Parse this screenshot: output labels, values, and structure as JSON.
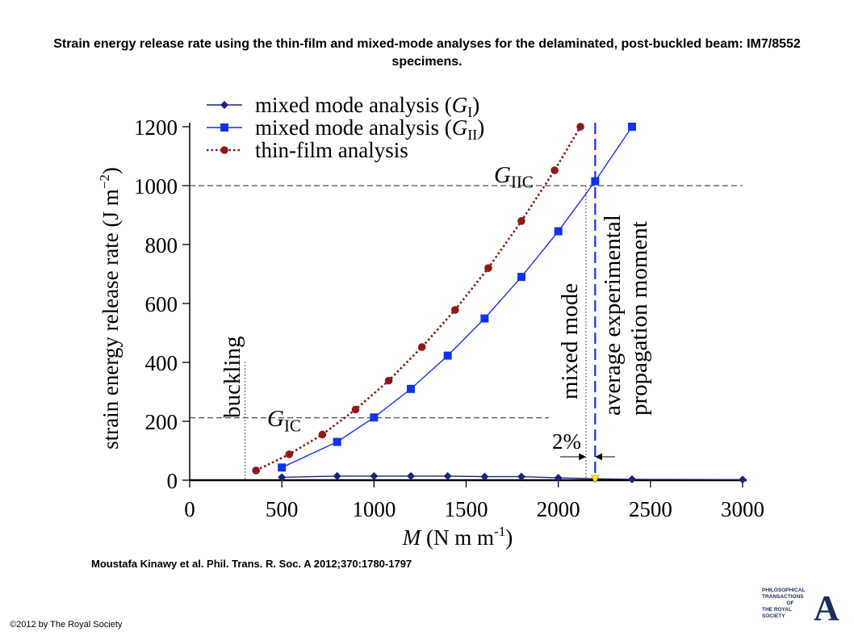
{
  "title": "Strain energy release rate using the thin-film and mixed-mode analyses for the delaminated, post-buckled beam: IM7/8552 specimens.",
  "citation": "Moustafa Kinawy et al. Phil. Trans. R. Soc. A 2012;370:1780-1797",
  "copyright": "©2012 by The Royal Society",
  "logo": {
    "lines": [
      "PHILOSOPHICAL",
      "TRANSACTIONS",
      "OF",
      "THE ROYAL",
      "SOCIETY"
    ],
    "letter": "A",
    "letter_color": "#1a2e5a"
  },
  "chart_data": {
    "type": "line",
    "xlabel": "M (N m m-1)",
    "ylabel": "strain energy release rate (J m-2)",
    "xlim": [
      0,
      3000
    ],
    "ylim": [
      0,
      1200
    ],
    "xticks": [
      0,
      500,
      1000,
      1500,
      2000,
      2500,
      3000
    ],
    "yticks": [
      0,
      200,
      400,
      600,
      800,
      1000,
      1200
    ],
    "legend_position": "top-left",
    "grid": false,
    "series": [
      {
        "name": "mixed mode analysis (GI)",
        "color": "#1a237e",
        "marker": "diamond",
        "style": "solid",
        "x": [
          500,
          800,
          1000,
          1200,
          1400,
          1600,
          1800,
          2000,
          2200,
          2400,
          3000
        ],
        "y": [
          10,
          14,
          14,
          14,
          14,
          12,
          12,
          8,
          5,
          3,
          2
        ]
      },
      {
        "name": "mixed mode analysis (GII)",
        "color": "#1133ee",
        "marker": "square",
        "style": "solid",
        "x": [
          500,
          800,
          1000,
          1200,
          1400,
          1600,
          1800,
          2000,
          2200,
          2400
        ],
        "y": [
          43,
          130,
          213,
          310,
          423,
          549,
          690,
          845,
          1015,
          1200
        ]
      },
      {
        "name": "thin-film analysis",
        "color": "#8b1a1a",
        "marker": "circle",
        "style": "dotted",
        "x": [
          360,
          540,
          720,
          900,
          1080,
          1260,
          1440,
          1620,
          1800,
          1980,
          2120
        ],
        "y": [
          33,
          88,
          155,
          240,
          338,
          452,
          578,
          720,
          880,
          1052,
          1200
        ]
      }
    ],
    "reference_lines": [
      {
        "axis": "y",
        "value": 1000,
        "label": "GIIC",
        "label_main": "G",
        "label_sub": "IIC",
        "style": "dashed",
        "color": "#555555"
      },
      {
        "axis": "y",
        "value": 212,
        "label": "GIC",
        "label_main": "G",
        "label_sub": "IC",
        "style": "dashed",
        "color": "#555555"
      },
      {
        "axis": "x",
        "value": 300,
        "label": "buckling",
        "style": "dotted",
        "color": "#555555"
      },
      {
        "axis": "x",
        "value": 2150,
        "label": "mixed mode",
        "style": "dotted",
        "color": "#555555"
      },
      {
        "axis": "x",
        "value": 2200,
        "label": "average experimental propagation moment",
        "label_lines": [
          "average experimental",
          "propagation moment"
        ],
        "style": "dashed",
        "color": "#1133ee"
      }
    ],
    "annotations": [
      {
        "text": "2%",
        "between_x": [
          2150,
          2200
        ]
      }
    ]
  }
}
